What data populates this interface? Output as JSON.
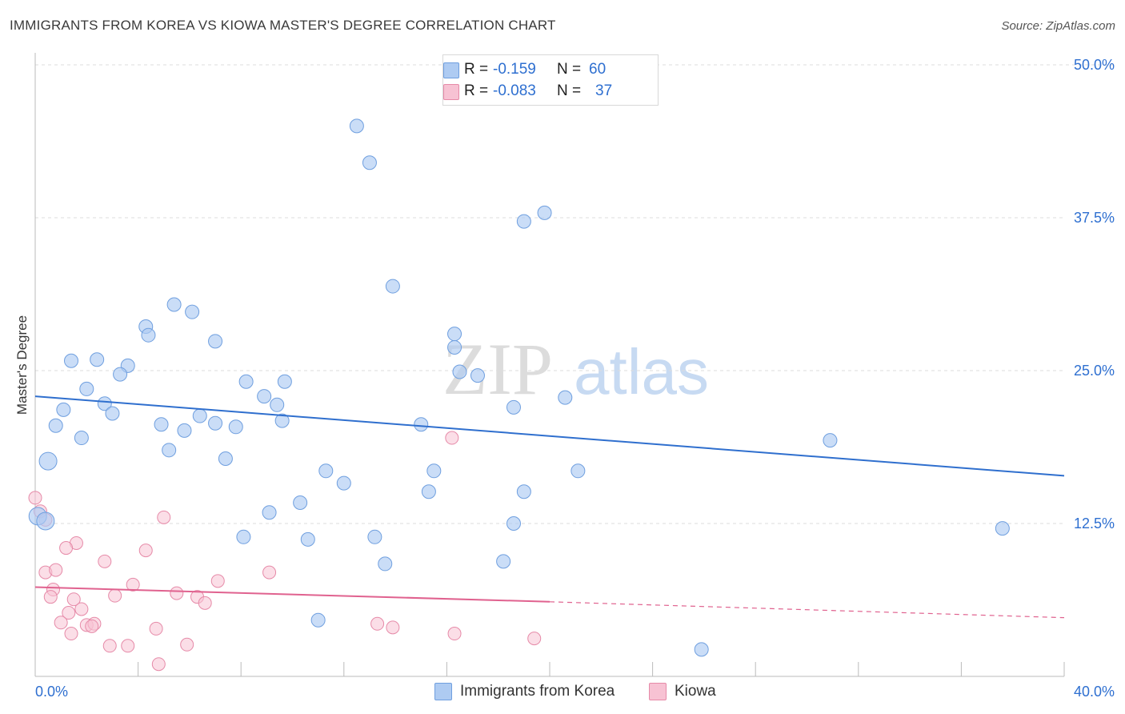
{
  "header": {
    "title": "IMMIGRANTS FROM KOREA VS KIOWA MASTER'S DEGREE CORRELATION CHART",
    "source": "Source: ZipAtlas.com"
  },
  "legend": {
    "series": [
      {
        "r_label": "R =",
        "r_value": "-0.159",
        "n_label": "N =",
        "n_value": "60"
      },
      {
        "r_label": "R =",
        "r_value": "-0.083",
        "n_label": "N =",
        "n_value": "37"
      }
    ]
  },
  "bottom_legend": {
    "items": [
      {
        "label": "Immigrants from Korea"
      },
      {
        "label": "Kiowa"
      }
    ]
  },
  "watermark": {
    "zip": "ZIP",
    "atlas": "atlas"
  },
  "colors": {
    "korea_fill": "#aecbf2",
    "korea_stroke": "#6f9fdf",
    "korea_line": "#2f6fce",
    "kiowa_fill": "#f7c2d3",
    "kiowa_stroke": "#e68aa8",
    "kiowa_line": "#e0628f",
    "tick_label": "#2e6fd0",
    "grid": "#dcdcdc"
  },
  "chart_data": {
    "type": "scatter",
    "title": "IMMIGRANTS FROM KOREA VS KIOWA MASTER'S DEGREE CORRELATION CHART",
    "xlabel": "",
    "ylabel": "Master's Degree",
    "xlim": [
      0,
      40
    ],
    "ylim": [
      0,
      50
    ],
    "x_tick_labels": [
      "0.0%",
      "40.0%"
    ],
    "y_ticks": [
      12.5,
      25.0,
      37.5,
      50.0
    ],
    "y_tick_labels": [
      "12.5%",
      "25.0%",
      "37.5%",
      "50.0%"
    ],
    "grid": true,
    "series": [
      {
        "name": "Immigrants from Korea",
        "r": -0.159,
        "n": 60,
        "trend": {
          "x": [
            0,
            40
          ],
          "y": [
            22.9,
            16.4
          ]
        },
        "points": [
          [
            12.5,
            45.0
          ],
          [
            13.0,
            42.0
          ],
          [
            19.0,
            37.2
          ],
          [
            19.8,
            37.9
          ],
          [
            13.9,
            31.9
          ],
          [
            5.4,
            30.4
          ],
          [
            6.1,
            29.8
          ],
          [
            4.3,
            28.6
          ],
          [
            4.4,
            27.9
          ],
          [
            7.0,
            27.4
          ],
          [
            1.4,
            25.8
          ],
          [
            2.4,
            25.9
          ],
          [
            3.6,
            25.4
          ],
          [
            3.3,
            24.7
          ],
          [
            8.2,
            24.1
          ],
          [
            9.7,
            24.1
          ],
          [
            2.0,
            23.5
          ],
          [
            8.9,
            22.9
          ],
          [
            2.7,
            22.3
          ],
          [
            9.4,
            22.2
          ],
          [
            1.1,
            21.8
          ],
          [
            3.0,
            21.5
          ],
          [
            6.4,
            21.3
          ],
          [
            0.8,
            20.5
          ],
          [
            4.9,
            20.6
          ],
          [
            5.8,
            20.1
          ],
          [
            7.0,
            20.7
          ],
          [
            7.8,
            20.4
          ],
          [
            9.6,
            20.9
          ],
          [
            1.8,
            19.5
          ],
          [
            5.2,
            18.5
          ],
          [
            7.4,
            17.8
          ],
          [
            0.5,
            17.6
          ],
          [
            11.3,
            16.8
          ],
          [
            15.5,
            16.8
          ],
          [
            21.1,
            16.8
          ],
          [
            12.0,
            15.8
          ],
          [
            15.3,
            15.1
          ],
          [
            19.0,
            15.1
          ],
          [
            10.3,
            14.2
          ],
          [
            9.1,
            13.4
          ],
          [
            18.6,
            12.5
          ],
          [
            8.1,
            11.4
          ],
          [
            10.6,
            11.2
          ],
          [
            13.2,
            11.4
          ],
          [
            13.6,
            9.2
          ],
          [
            18.2,
            9.4
          ],
          [
            11.0,
            4.6
          ],
          [
            25.9,
            2.2
          ],
          [
            37.6,
            12.1
          ],
          [
            30.9,
            19.3
          ],
          [
            16.5,
            24.9
          ],
          [
            17.2,
            24.6
          ],
          [
            15.0,
            20.6
          ],
          [
            16.3,
            26.9
          ],
          [
            16.3,
            28.0
          ],
          [
            18.6,
            22.0
          ],
          [
            20.6,
            22.8
          ],
          [
            0.1,
            13.1
          ],
          [
            0.4,
            12.7
          ]
        ]
      },
      {
        "name": "Kiowa",
        "r": -0.083,
        "n": 37,
        "trend": {
          "x": [
            0,
            20
          ],
          "y": [
            7.3,
            6.1
          ]
        },
        "trend_extension": {
          "x": [
            20,
            40
          ],
          "y": [
            6.1,
            4.8
          ]
        },
        "points": [
          [
            0.0,
            14.6
          ],
          [
            0.2,
            13.5
          ],
          [
            0.4,
            12.8
          ],
          [
            1.6,
            10.9
          ],
          [
            1.2,
            10.5
          ],
          [
            5.0,
            13.0
          ],
          [
            4.3,
            10.3
          ],
          [
            2.7,
            9.4
          ],
          [
            0.4,
            8.5
          ],
          [
            0.8,
            8.7
          ],
          [
            9.1,
            8.5
          ],
          [
            7.1,
            7.8
          ],
          [
            3.8,
            7.5
          ],
          [
            0.7,
            7.1
          ],
          [
            5.5,
            6.8
          ],
          [
            0.6,
            6.5
          ],
          [
            1.5,
            6.3
          ],
          [
            3.1,
            6.6
          ],
          [
            6.3,
            6.5
          ],
          [
            6.6,
            6.0
          ],
          [
            1.8,
            5.5
          ],
          [
            1.3,
            5.2
          ],
          [
            1.0,
            4.4
          ],
          [
            2.0,
            4.2
          ],
          [
            2.3,
            4.3
          ],
          [
            2.2,
            4.1
          ],
          [
            4.7,
            3.9
          ],
          [
            1.4,
            3.5
          ],
          [
            13.3,
            4.3
          ],
          [
            13.9,
            4.0
          ],
          [
            16.3,
            3.5
          ],
          [
            19.4,
            3.1
          ],
          [
            2.9,
            2.5
          ],
          [
            3.6,
            2.5
          ],
          [
            5.9,
            2.6
          ],
          [
            4.8,
            1.0
          ],
          [
            16.2,
            19.5
          ]
        ]
      }
    ]
  }
}
